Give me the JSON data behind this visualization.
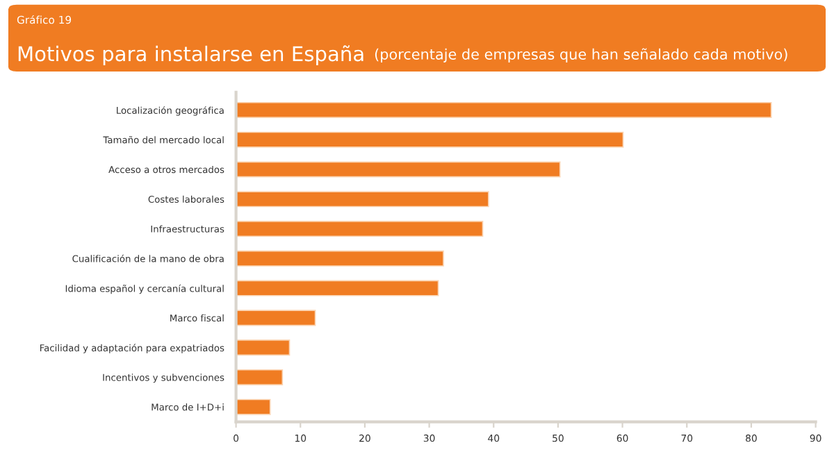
{
  "chart_data": {
    "type": "bar",
    "orientation": "horizontal",
    "title": "Motivos para instalarse en España",
    "subtitle": "(porcentaje de empresas que han señalado cada motivo)",
    "annotations": [
      "Gráfico 19"
    ],
    "categories": [
      "Localización geográfica",
      "Tamaño del mercado local",
      "Acceso a otros mercados",
      "Costes laborales",
      "Infraestructuras",
      "Cualificación de la mano de obra",
      "Idioma español y cercanía cultural",
      "Marco fiscal",
      "Facilidad y adaptación para expatriados",
      "Incentivos y subvenciones",
      "Marco de I+D+i"
    ],
    "values": [
      83.1,
      60.1,
      50.3,
      39.2,
      38.3,
      32.2,
      31.4,
      12.3,
      8.3,
      7.2,
      5.3
    ],
    "color": "#f07c22",
    "xlim": [
      0,
      90
    ],
    "xticks": [
      0,
      10,
      20,
      30,
      40,
      50,
      60,
      70,
      80,
      90
    ],
    "grid": false
  }
}
